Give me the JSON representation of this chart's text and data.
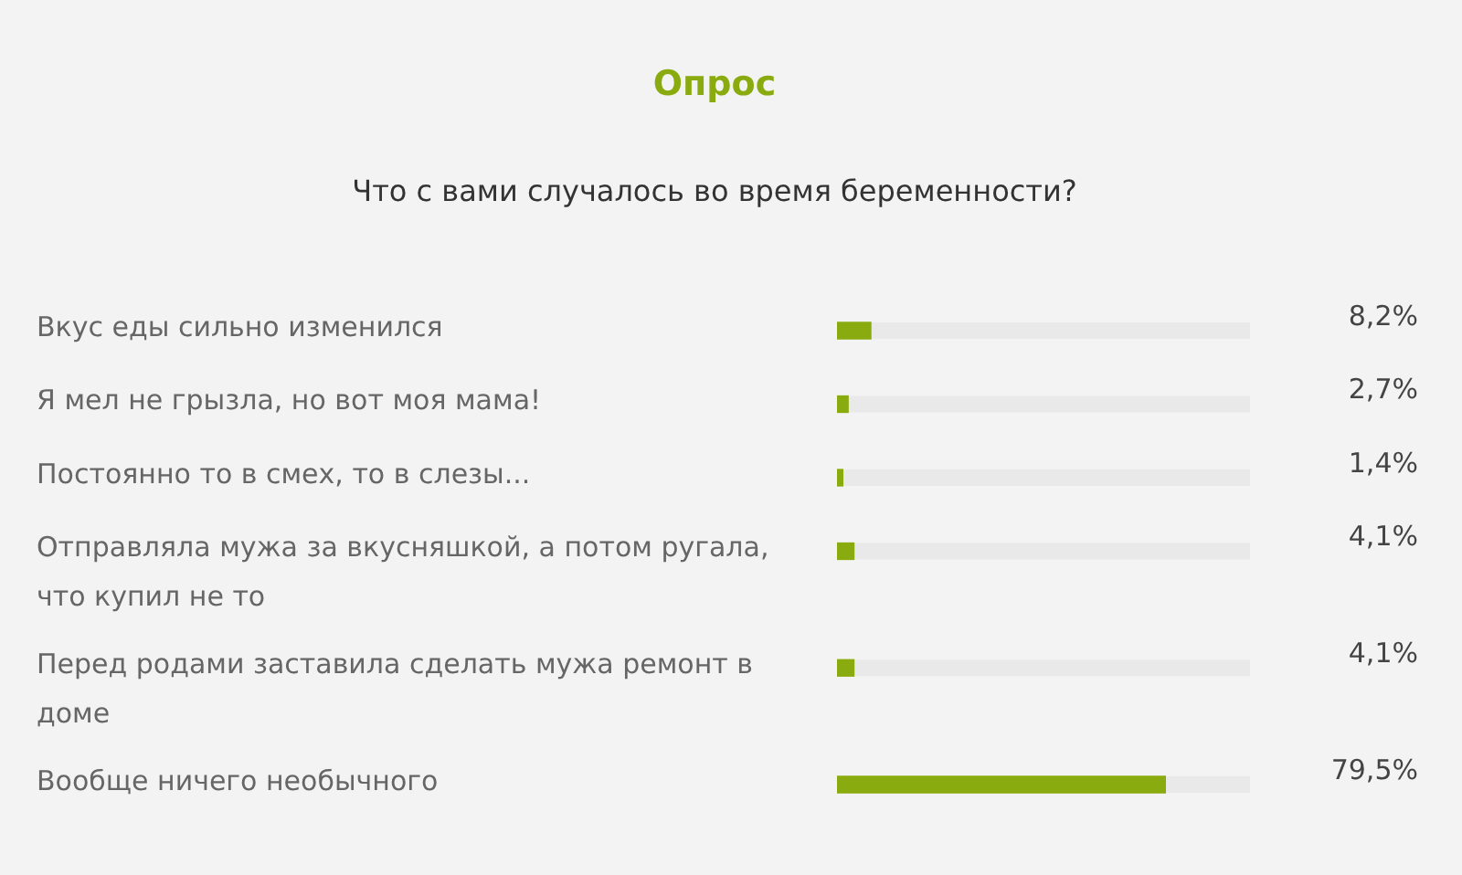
{
  "chart_data": {
    "type": "bar",
    "orientation": "horizontal",
    "title": "Опрос",
    "subtitle": "Что с вами случалось во время беременности?",
    "categories": [
      "Вкус еды сильно изменился",
      "Я мел не грызла, но вот моя мама!",
      "Постоянно то в смех, то в слезы...",
      "Отправляла мужа за вкусняшкой, а потом ругала, что купил не то",
      "Перед родами заставила сделать мужа ремонт в доме",
      "Вообще ничего необычного"
    ],
    "values": [
      8.2,
      2.7,
      1.4,
      4.1,
      4.1,
      79.5
    ],
    "value_labels": [
      "8,2%",
      "2,7%",
      "1,4%",
      "4,1%",
      "4,1%",
      "79,5%"
    ],
    "color": "#8aab0f",
    "xlim": [
      0,
      100
    ],
    "tick_labels": "y"
  }
}
